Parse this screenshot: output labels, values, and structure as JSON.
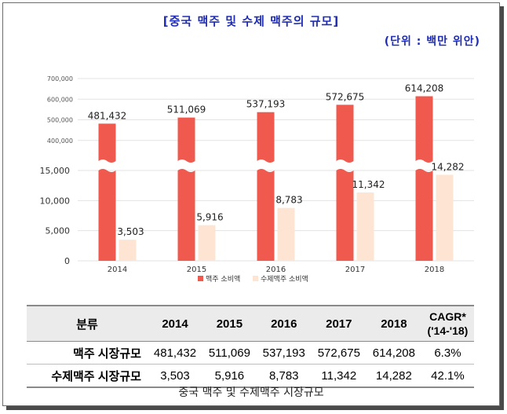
{
  "header": {
    "title": "[중국 맥주 및 수제 맥주의 규모]",
    "unit": "(단위 : 백만 위안)"
  },
  "chart_data": {
    "type": "bar",
    "title": "[중국 맥주 및 수제 맥주의 규모]",
    "unit_label": "(단위 : 백만 위안)",
    "categories": [
      "2014",
      "2015",
      "2016",
      "2017",
      "2018"
    ],
    "axis_break": {
      "lower_range": [
        0,
        15000
      ],
      "upper_range": [
        300000,
        700000
      ]
    },
    "y_ticks_upper": [
      "700,000",
      "600,000",
      "500,000",
      "400,000"
    ],
    "y_ticks_lower": [
      "15,000",
      "10,000",
      "5,000",
      "0"
    ],
    "series": [
      {
        "name": "맥주 소비액",
        "color": "#f0594e",
        "values": [
          481432,
          511069,
          537193,
          572675,
          614208
        ],
        "labels": [
          "481,432",
          "511,069",
          "537,193",
          "572,675",
          "614,208"
        ]
      },
      {
        "name": "수제맥주 소비액",
        "color": "#fde4d3",
        "values": [
          3503,
          5916,
          8783,
          11342,
          14282
        ],
        "labels": [
          "3,503",
          "5,916",
          "8,783",
          "11,342",
          "14,282"
        ]
      }
    ],
    "legend_position": "bottom"
  },
  "table": {
    "headers": [
      "분류",
      "2014",
      "2015",
      "2016",
      "2017",
      "2018",
      "CAGR*",
      "('14-'18)"
    ],
    "rows": [
      {
        "label": "맥주 시장규모",
        "cells": [
          "481,432",
          "511,069",
          "537,193",
          "572,675",
          "614,208",
          "6.3%"
        ]
      },
      {
        "label": "수제맥주 시장규모",
        "cells": [
          "3,503",
          "5,916",
          "8,783",
          "11,342",
          "14,282",
          "42.1%"
        ]
      }
    ]
  },
  "caption": "중국 맥주 및 수제맥주 시장규모"
}
